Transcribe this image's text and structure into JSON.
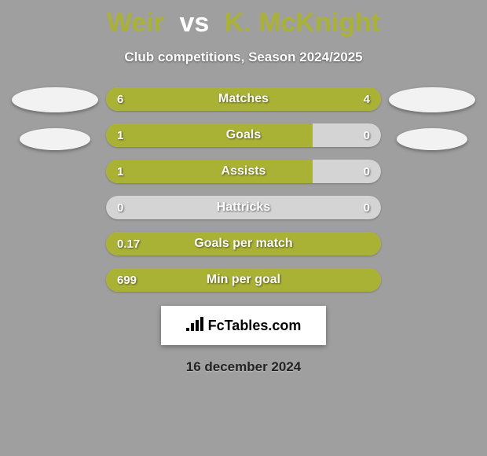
{
  "background_color": "#9f9f9f",
  "title": {
    "player1": "Weir",
    "vs": "vs",
    "player2": "K. McKnight",
    "player1_color": "#aab236",
    "vs_color": "#ffffff",
    "player2_color": "#aab236"
  },
  "subtitle": "Club competitions, Season 2024/2025",
  "side_ellipses": {
    "left_color": "#f2f2f2",
    "right_color": "#f2f2f2"
  },
  "bars": {
    "bg_color": "#d4d4d4",
    "fill_color": "#aab236",
    "border_radius": 16,
    "rows": [
      {
        "label": "Matches",
        "left": "6",
        "right": "4",
        "left_pct": 60,
        "right_pct": 40
      },
      {
        "label": "Goals",
        "left": "1",
        "right": "0",
        "left_pct": 75,
        "right_pct": 0
      },
      {
        "label": "Assists",
        "left": "1",
        "right": "0",
        "left_pct": 75,
        "right_pct": 0
      },
      {
        "label": "Hattricks",
        "left": "0",
        "right": "0",
        "left_pct": 0,
        "right_pct": 0
      },
      {
        "label": "Goals per match",
        "left": "0.17",
        "right": "",
        "left_pct": 100,
        "right_pct": 0
      },
      {
        "label": "Min per goal",
        "left": "699",
        "right": "",
        "left_pct": 100,
        "right_pct": 0
      }
    ]
  },
  "brand": {
    "icon_text": "∶",
    "text": "FcTables.com",
    "text_color": "#000000"
  },
  "date": "16 december 2024"
}
